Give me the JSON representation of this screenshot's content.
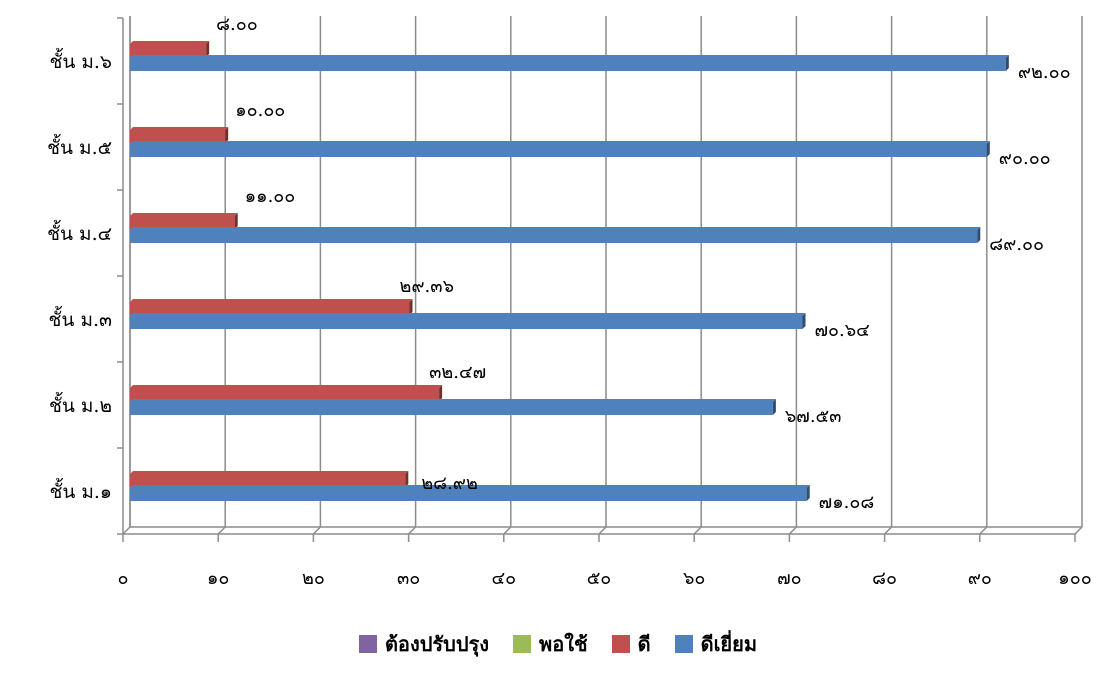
{
  "chart_data": {
    "type": "bar",
    "orientation": "horizontal",
    "categories": [
      "ชั้น ม.๖",
      "ชั้น ม.๕",
      "ชั้น ม.๔",
      "ชั้น ม.๓",
      "ชั้น ม.๒",
      "ชั้น ม.๑"
    ],
    "series": [
      {
        "name": "ต้องปรับปรุง",
        "color": "#8064A2",
        "values": [
          0,
          0,
          0,
          0,
          0,
          0
        ],
        "labels": [
          "",
          "",
          "",
          "",
          "",
          ""
        ]
      },
      {
        "name": "พอใช้",
        "color": "#9BBB59",
        "values": [
          0,
          0,
          0,
          0,
          0,
          0
        ],
        "labels": [
          "",
          "",
          "",
          "",
          "",
          ""
        ]
      },
      {
        "name": "ดี",
        "color": "#C0504D",
        "values": [
          8.0,
          10.0,
          11.0,
          29.36,
          32.47,
          28.92
        ],
        "labels": [
          "๘.๐๐",
          "๑๐.๐๐",
          "๑๑.๐๐",
          "๒๙.๓๖",
          "๓๒.๔๗",
          "๒๘.๙๒"
        ]
      },
      {
        "name": "ดีเยี่ยม",
        "color": "#4F81BD",
        "values": [
          92.0,
          90.0,
          89.0,
          70.64,
          67.53,
          71.08
        ],
        "labels": [
          "๙๒.๐๐",
          "๙๐.๐๐",
          "๘๙.๐๐",
          "๗๐.๖๔",
          "๖๗.๕๓",
          "๗๑.๐๘"
        ]
      }
    ],
    "xlim": [
      0,
      100
    ],
    "xticks": [
      0,
      10,
      20,
      30,
      40,
      50,
      60,
      70,
      80,
      90,
      100
    ],
    "xtick_labels": [
      "๐",
      "๑๐",
      "๒๐",
      "๓๐",
      "๔๐",
      "๕๐",
      "๖๐",
      "๗๐",
      "๘๐",
      "๙๐",
      "๑๐๐"
    ],
    "grid": true,
    "legend_position": "bottom"
  }
}
